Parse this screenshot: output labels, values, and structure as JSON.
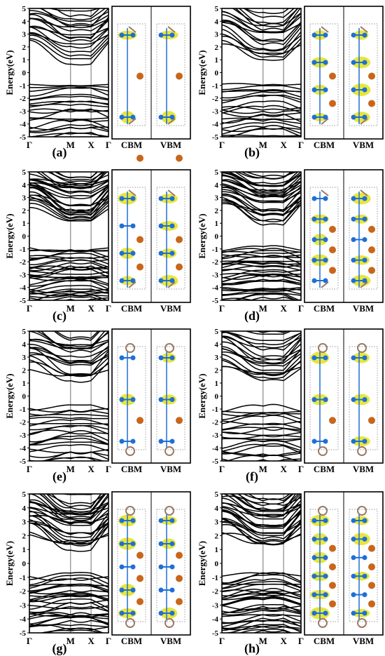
{
  "figure": {
    "panels": [
      {
        "label": "(a)",
        "wf_rows": 2,
        "long": false
      },
      {
        "label": "(b)",
        "wf_rows": 4,
        "long": false
      },
      {
        "label": "(c)",
        "wf_rows": 4,
        "long": true
      },
      {
        "label": "(d)",
        "wf_rows": 5,
        "long": true
      },
      {
        "label": "(e)",
        "wf_rows": 3,
        "long": false,
        "rings": true
      },
      {
        "label": "(f)",
        "wf_rows": 3,
        "long": false,
        "rings": true
      },
      {
        "label": "(g)",
        "wf_rows": 5,
        "long": true,
        "rings": true
      },
      {
        "label": "(h)",
        "wf_rows": 6,
        "long": true,
        "rings": true
      }
    ],
    "y_axis_label": "Energy(eV)",
    "y_ticks": [
      "5",
      "4",
      "3",
      "2",
      "1",
      "0",
      "-1",
      "-2",
      "-3",
      "-4",
      "-5"
    ],
    "x_ticks": [
      "Γ",
      "M",
      "X",
      "Γ"
    ],
    "orbital_labels": [
      "CBM",
      "VBM"
    ],
    "colors": {
      "bands": "#000000",
      "orbital": "#e3e21a",
      "nitrogen": "#1f6fd6",
      "metal": "#c8661a",
      "carbon": "#9b7a66"
    }
  }
}
